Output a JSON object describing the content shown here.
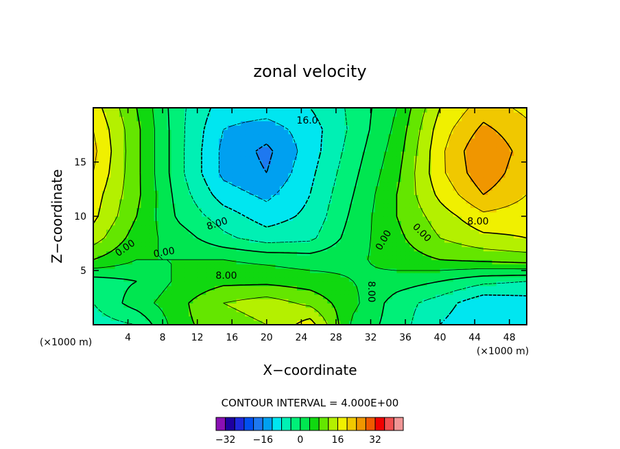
{
  "chart_data": {
    "type": "heatmap",
    "title": "zonal velocity",
    "xlabel": "X−coordinate",
    "ylabel": "Z−coordinate",
    "x_unit_label": "(×1000 m)",
    "x_unit_label_right": "(×1000 m)",
    "xlim": [
      0,
      50
    ],
    "ylim": [
      0,
      20
    ],
    "x_ticks": [
      4,
      8,
      12,
      16,
      20,
      24,
      28,
      32,
      36,
      40,
      44,
      48
    ],
    "y_ticks": [
      5,
      10,
      15
    ],
    "contour_interval_text": "CONTOUR INTERVAL = 4.000E+00",
    "contour_labels": [
      "8.00",
      "0.00",
      "0.00",
      "8.00",
      "8.00",
      "0.00",
      "0.00",
      "8.00",
      "16.0"
    ],
    "colorbar": {
      "levels": [
        -36,
        -32,
        -28,
        -24,
        -20,
        -16,
        -12,
        -8,
        -4,
        0,
        4,
        8,
        12,
        16,
        20,
        24,
        28,
        32,
        36,
        40
      ],
      "tick_labels": [
        "−32",
        "−16",
        "0",
        "16",
        "32"
      ],
      "tick_values": [
        -32,
        -16,
        0,
        16,
        32
      ],
      "colors": [
        "#8a10b4",
        "#1e00a0",
        "#1e28dc",
        "#0050f0",
        "#1e78f0",
        "#00a0f0",
        "#00e6f0",
        "#00f0b4",
        "#00f078",
        "#00e650",
        "#10d810",
        "#64e600",
        "#b4f000",
        "#f0f000",
        "#f0c800",
        "#f09600",
        "#f05a00",
        "#f00000",
        "#f05050",
        "#f09696"
      ]
    },
    "values_grid": {
      "x": [
        0,
        5,
        10,
        15,
        20,
        25,
        30,
        35,
        40,
        45,
        50
      ],
      "z": [
        0,
        2,
        4,
        6,
        8,
        10,
        12,
        14,
        16,
        18,
        20
      ],
      "u": [
        [
          -6,
          -4,
          7,
          10,
          12,
          18,
          3,
          -2,
          -8,
          -12,
          -9
        ],
        [
          -4,
          2,
          7,
          12,
          14,
          11,
          5,
          -2,
          -6,
          -11,
          -10
        ],
        [
          -2,
          0,
          5,
          7,
          7,
          6,
          4,
          2,
          0,
          -3,
          -4
        ],
        [
          8,
          4,
          4,
          4,
          3,
          2,
          3,
          6,
          8,
          9,
          10
        ],
        [
          14,
          6,
          2,
          -3,
          -6,
          -5,
          2,
          7,
          12,
          15,
          16
        ],
        [
          17,
          8,
          -1,
          -6,
          -10,
          -7,
          1,
          8,
          14,
          19,
          18
        ],
        [
          18,
          9,
          -2,
          -10,
          -13,
          -8,
          0,
          8,
          17,
          24,
          20
        ],
        [
          20,
          9,
          -3,
          -13,
          -16,
          -9,
          -1,
          7,
          19,
          27,
          21
        ],
        [
          21,
          9,
          -3,
          -13,
          -17,
          -10,
          -2,
          6,
          19,
          28,
          22
        ],
        [
          20,
          9,
          -3,
          -12,
          -14,
          -10,
          -3,
          5,
          18,
          25,
          21
        ],
        [
          18,
          8,
          -3,
          -10,
          -10,
          -8,
          -3,
          4,
          16,
          22,
          19
        ]
      ]
    }
  }
}
